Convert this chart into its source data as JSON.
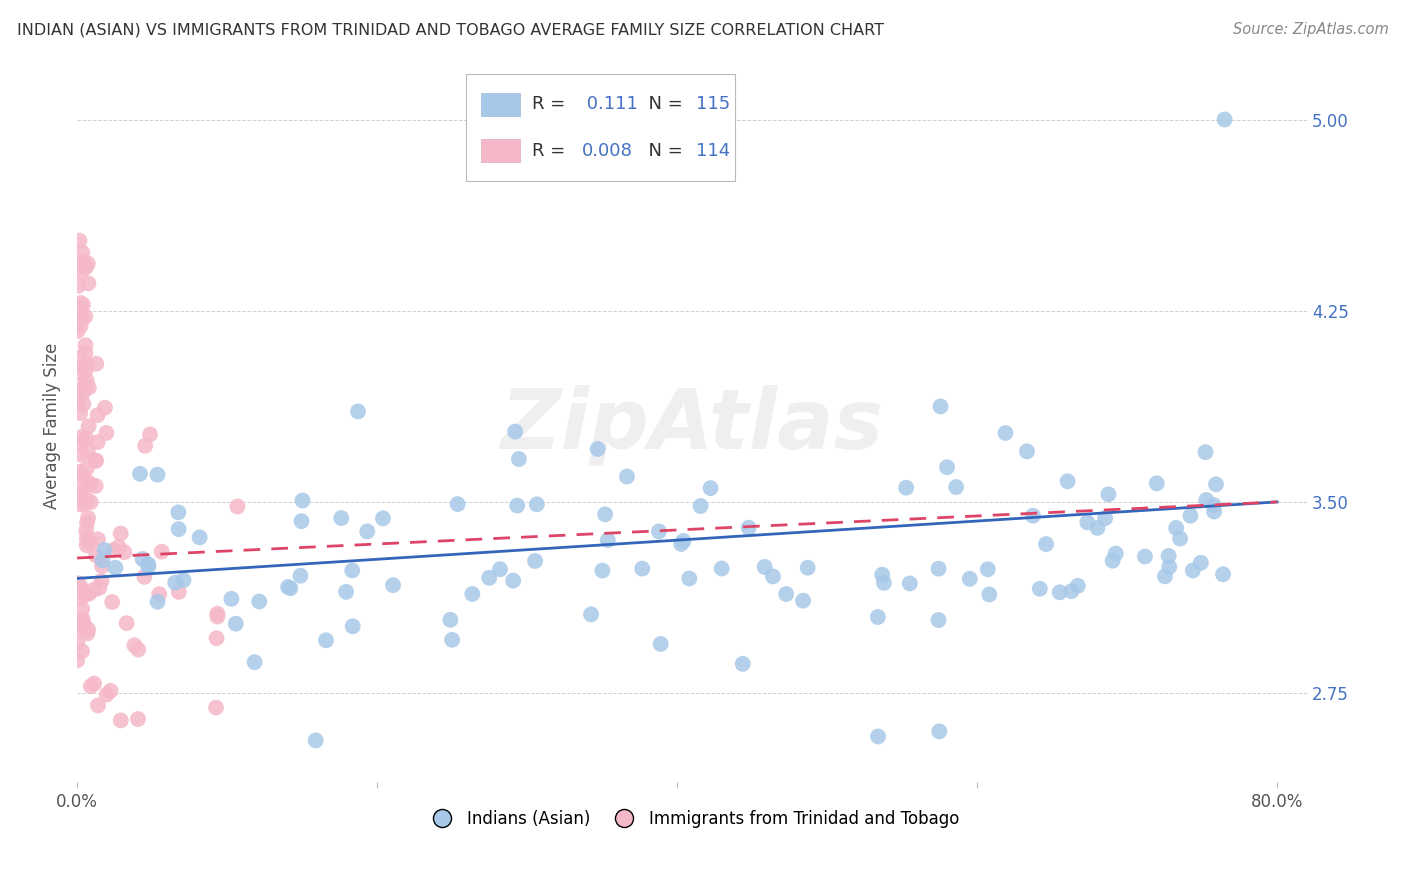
{
  "title": "INDIAN (ASIAN) VS IMMIGRANTS FROM TRINIDAD AND TOBAGO AVERAGE FAMILY SIZE CORRELATION CHART",
  "source": "Source: ZipAtlas.com",
  "ylabel": "Average Family Size",
  "xlim": [
    0.0,
    0.82
  ],
  "ylim": [
    2.4,
    5.2
  ],
  "yticks": [
    2.75,
    3.5,
    4.25,
    5.0
  ],
  "xticks": [
    0.0,
    0.2,
    0.4,
    0.6,
    0.8
  ],
  "xticklabels": [
    "0.0%",
    "",
    "",
    "",
    "80.0%"
  ],
  "blue_R": 0.111,
  "blue_N": 115,
  "pink_R": 0.008,
  "pink_N": 114,
  "blue_color": "#a8c8e8",
  "pink_color": "#f5b8c8",
  "blue_line_color": "#3366bb",
  "pink_line_color": "#dd4466",
  "legend_label_blue": "Indians (Asian)",
  "legend_label_pink": "Immigrants from Trinidad and Tobago",
  "watermark": "ZipAtlas",
  "background_color": "#ffffff",
  "grid_color": "#cccccc",
  "title_color": "#333333",
  "axis_label_color": "#555555",
  "ytick_color": "#4472c4"
}
